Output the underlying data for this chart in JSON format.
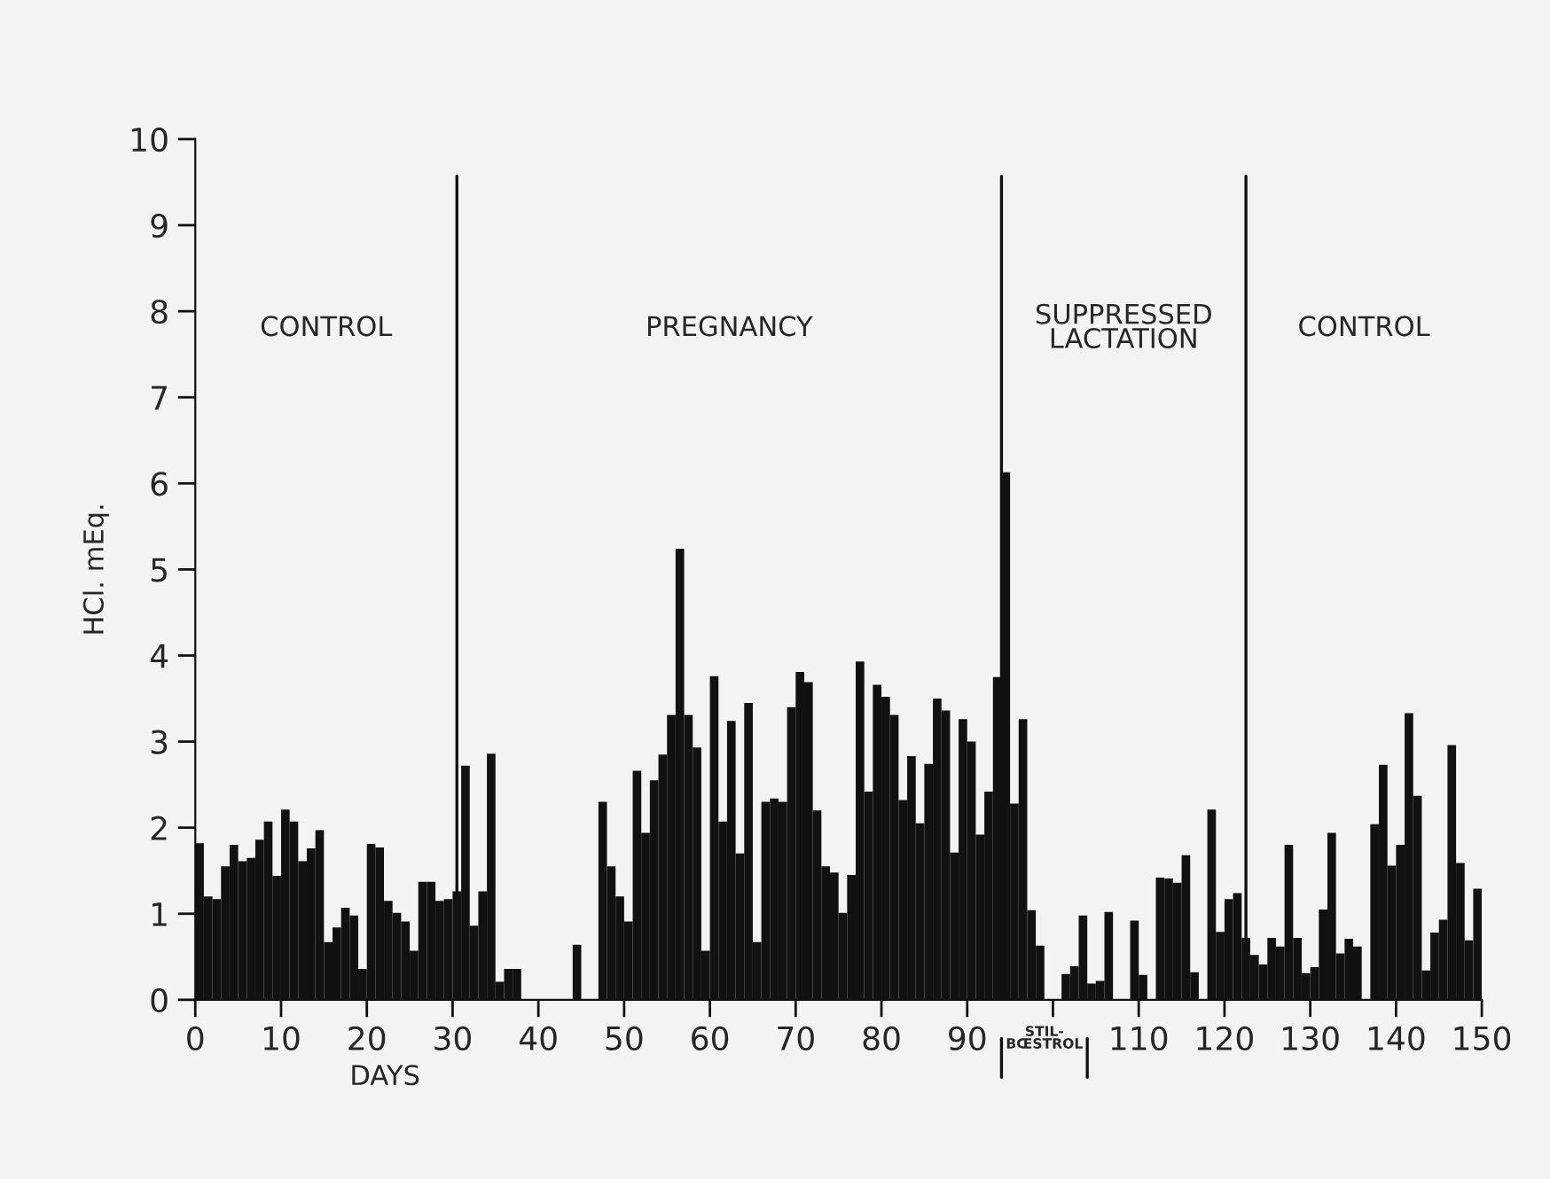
{
  "chart_data": {
    "type": "bar",
    "xlabel": "DAYS",
    "ylabel": "HCl. mEq.",
    "x": [
      0,
      1,
      2,
      3,
      4,
      5,
      6,
      7,
      8,
      9,
      10,
      11,
      12,
      13,
      14,
      15,
      16,
      17,
      18,
      19,
      20,
      21,
      22,
      23,
      24,
      25,
      26,
      27,
      28,
      29,
      30,
      31,
      32,
      33,
      34,
      35,
      36,
      37,
      38,
      39,
      40,
      41,
      42,
      43,
      44,
      45,
      46,
      47,
      48,
      49,
      50,
      51,
      52,
      53,
      54,
      55,
      56,
      57,
      58,
      59,
      60,
      61,
      62,
      63,
      64,
      65,
      66,
      67,
      68,
      69,
      70,
      71,
      72,
      73,
      74,
      75,
      76,
      77,
      78,
      79,
      80,
      81,
      82,
      83,
      84,
      85,
      86,
      87,
      88,
      89,
      90,
      91,
      92,
      93,
      94,
      95,
      96,
      97,
      98,
      99,
      100,
      101,
      102,
      103,
      104,
      105,
      106,
      107,
      108,
      109,
      110,
      111,
      112,
      113,
      114,
      115,
      116,
      117,
      118,
      119,
      120,
      121,
      122,
      123,
      124,
      125,
      126,
      127,
      128,
      129,
      130,
      131,
      132,
      133,
      134,
      135,
      136,
      137,
      138,
      139,
      140,
      141,
      142,
      143,
      144,
      145,
      146,
      147,
      148,
      149
    ],
    "values": [
      1.82,
      1.2,
      1.17,
      1.55,
      1.8,
      1.61,
      1.65,
      1.86,
      2.07,
      1.44,
      2.21,
      2.07,
      1.61,
      1.76,
      1.97,
      0.67,
      0.84,
      1.07,
      0.98,
      0.36,
      1.81,
      1.77,
      1.15,
      1.01,
      0.91,
      0.57,
      1.37,
      1.37,
      1.15,
      1.17,
      1.26,
      2.72,
      0.86,
      1.26,
      2.86,
      0.21,
      0.36,
      0.36,
      0,
      0,
      0,
      0,
      0,
      0,
      0.64,
      0,
      0,
      2.3,
      1.55,
      1.2,
      0.91,
      2.66,
      1.94,
      2.55,
      2.85,
      3.31,
      5.24,
      3.31,
      2.93,
      0.57,
      3.76,
      2.07,
      3.24,
      1.7,
      3.45,
      0.67,
      2.3,
      2.34,
      2.3,
      3.4,
      3.81,
      3.69,
      2.2,
      1.55,
      1.48,
      1.01,
      1.45,
      3.93,
      2.42,
      3.66,
      3.52,
      3.31,
      2.32,
      2.83,
      2.05,
      2.74,
      3.5,
      3.36,
      1.71,
      3.26,
      3.0,
      1.92,
      2.42,
      3.75,
      6.13,
      2.28,
      3.26,
      1.04,
      0.63,
      0,
      0,
      0.3,
      0.39,
      0.98,
      0.19,
      0.22,
      1.02,
      0,
      0,
      0.92,
      0.29,
      0,
      1.42,
      1.41,
      1.36,
      1.68,
      0.32,
      0,
      2.21,
      0.79,
      1.17,
      1.24,
      0.72,
      0.52,
      0.41,
      0.72,
      0.62,
      1.8,
      0.72,
      0.31,
      0.38,
      1.05,
      1.94,
      0.54,
      0.71,
      0.62,
      0,
      2.04,
      2.73,
      1.56,
      1.8,
      3.33,
      2.37,
      0.34,
      0.78,
      0.93,
      2.96,
      1.59,
      0.69,
      1.29
    ],
    "color": "#111111",
    "xlim": [
      0,
      150
    ],
    "xticks": [
      0,
      10,
      20,
      30,
      40,
      50,
      60,
      70,
      80,
      90,
      {
        "value": 100,
        "label": null
      },
      110,
      120,
      130,
      140,
      150
    ],
    "ylim": [
      0,
      10
    ],
    "yticks": [
      0,
      1,
      2,
      3,
      4,
      5,
      6,
      7,
      8,
      9,
      10
    ],
    "ref_lines": [
      {
        "axis": "x",
        "value": 30.5,
        "color": "#111111"
      },
      {
        "axis": "x",
        "value": 94,
        "color": "#111111"
      },
      {
        "axis": "x",
        "value": 122.5,
        "color": "#111111"
      }
    ],
    "annotations": [
      "CONTROL",
      "PREGNANCY",
      "SUPPRESSED\nLACTATION",
      "CONTROL",
      {
        "text": "STIL-\nBŒSTROL",
        "x": 99,
        "y": 0
      }
    ],
    "grid": false,
    "legend": false
  }
}
